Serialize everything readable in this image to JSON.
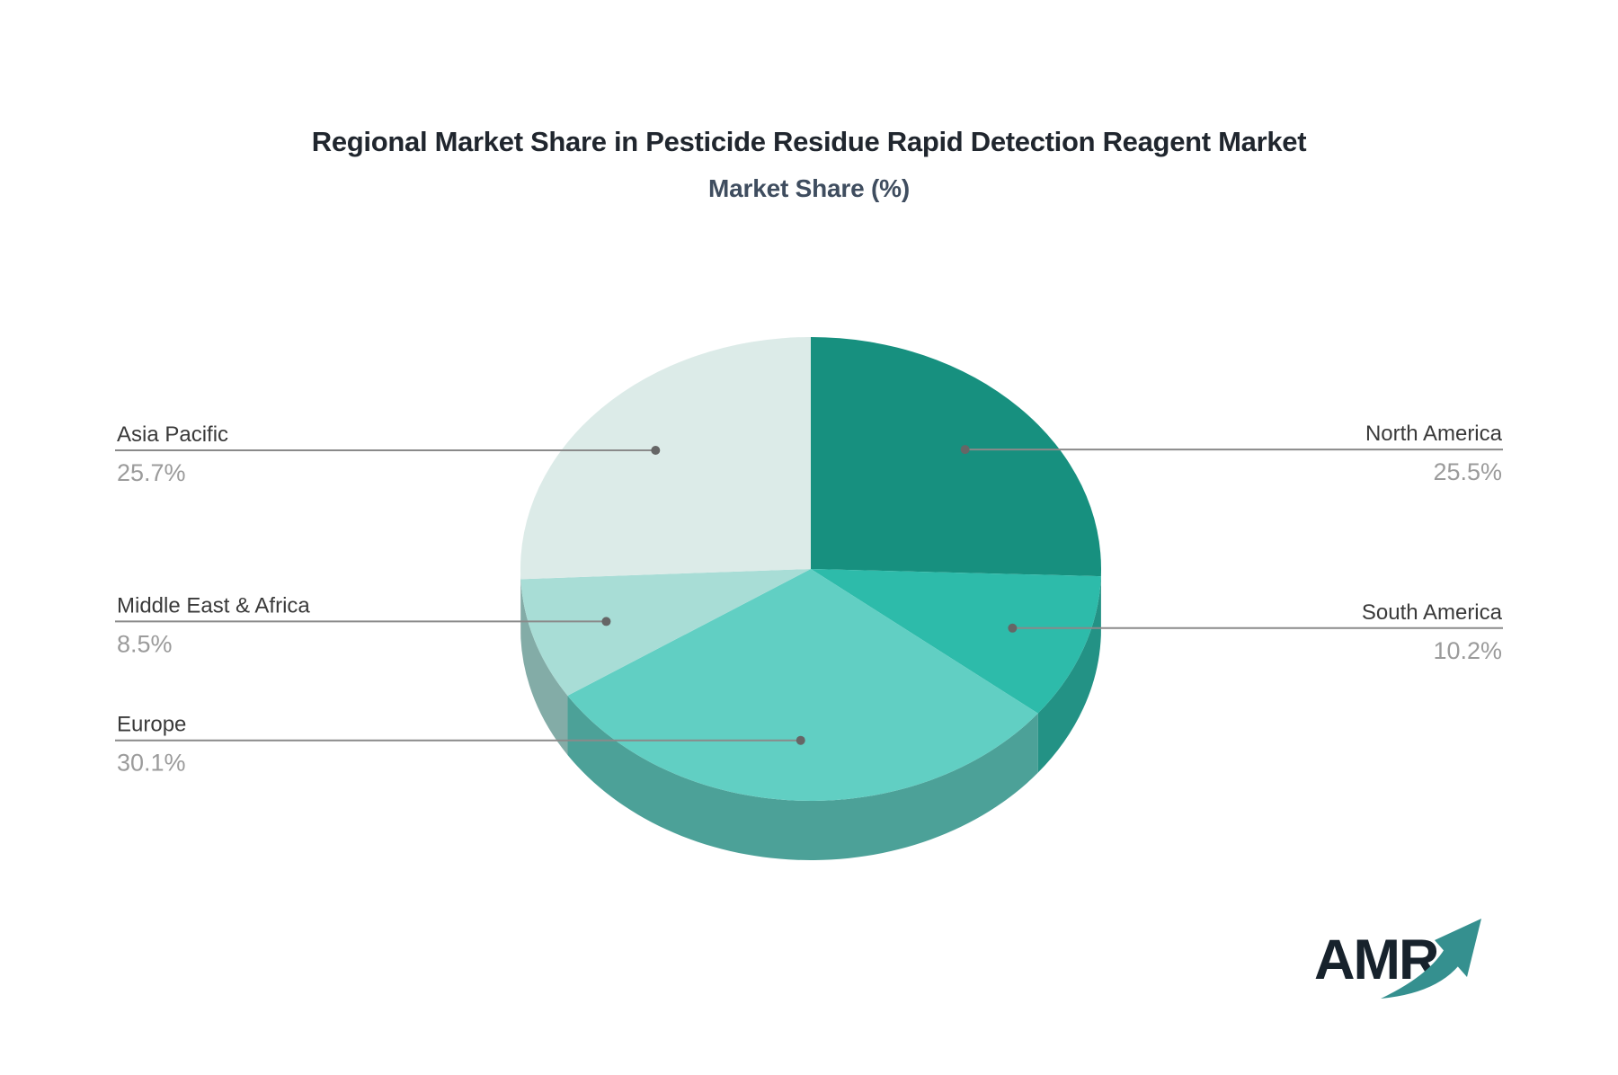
{
  "title": "Regional Market Share in Pesticide Residue Rapid Detection Reagent Market",
  "subtitle": "Market Share (%)",
  "chart_data": {
    "type": "pie",
    "title": "Regional Market Share in Pesticide Residue Rapid Detection Reagent Market",
    "subtitle": "Market Share (%)",
    "unit": "%",
    "start_angle_deg": 0,
    "direction": "clockwise",
    "effect": "3d-depth",
    "slices": [
      {
        "label": "North America",
        "value": 25.5,
        "color": "#17907F"
      },
      {
        "label": "South America",
        "value": 10.2,
        "color": "#2DBBAA"
      },
      {
        "label": "Europe",
        "value": 30.1,
        "color": "#61CFC3"
      },
      {
        "label": "Middle East & Africa",
        "value": 8.5,
        "color": "#A8DDD6"
      },
      {
        "label": "Asia Pacific",
        "value": 25.7,
        "color": "#DCEBE8"
      }
    ],
    "legend_position": "callout-labels",
    "grid": false
  },
  "style": {
    "leader_line_color": "#8a8a8a",
    "leader_dot_color": "#666666",
    "label_name_color": "#3a3a3a",
    "label_pct_color": "#9b9b9b",
    "title_color": "#20262e",
    "subtitle_color": "#3f4d5f",
    "logo_text_color": "#17222c",
    "logo_arrow_color": "#35908F"
  },
  "logo": {
    "text": "AMR"
  }
}
